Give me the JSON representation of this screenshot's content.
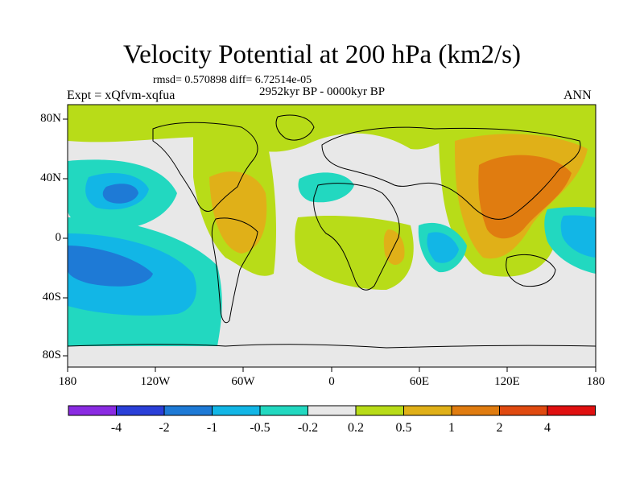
{
  "title": "Velocity Potential at 200 hPa (km2/s)",
  "stats": "rmsd= 0.570898  diff= 6.72514e-05",
  "period": "2952kyr BP - 0000kyr BP",
  "experiment": "Expt = xQfvm-xqfua",
  "season": "ANN",
  "y_axis_labels": [
    "80N",
    "40N",
    "0",
    "40S",
    "80S"
  ],
  "x_axis_labels": [
    "180",
    "120W",
    "60W",
    "0",
    "60E",
    "120E",
    "180"
  ],
  "colorbar": {
    "labels": [
      "-4",
      "-2",
      "-1",
      "-0.5",
      "-0.2",
      "0.2",
      "0.5",
      "1",
      "2",
      "4"
    ],
    "colors": [
      "#8a2be2",
      "#2a3fd8",
      "#1e7ad6",
      "#12b6e6",
      "#22d8c0",
      "#e8e8e8",
      "#b8dc18",
      "#e0b018",
      "#e07c10",
      "#e04a10",
      "#e01010"
    ]
  },
  "field_colors": {
    "neutral": "#e8e8e8",
    "pos_0_2": "#b8dc18",
    "pos_0_5": "#e0b018",
    "pos_1": "#e07c10",
    "neg_0_2": "#22d8c0",
    "neg_0_5": "#12b6e6",
    "neg_1": "#1e7ad6"
  }
}
